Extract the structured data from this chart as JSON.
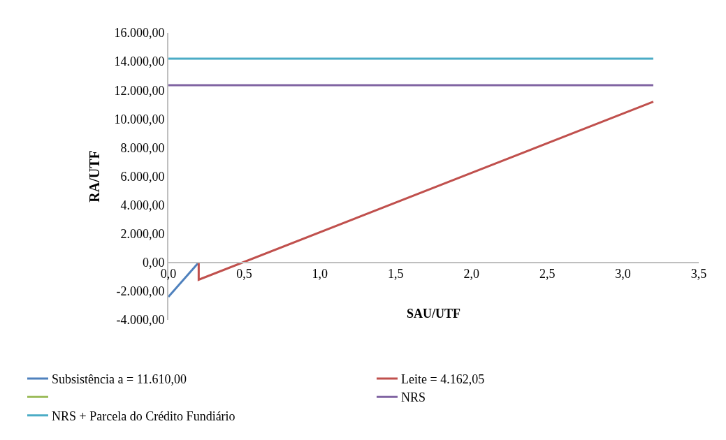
{
  "chart_data": {
    "type": "line",
    "xlabel": "SAU/UTF",
    "ylabel": "RA/UTF",
    "xlim": [
      0,
      3.5
    ],
    "xticks": [
      {
        "value": 0,
        "label": "0,0"
      },
      {
        "value": 0.5,
        "label": "0,5"
      },
      {
        "value": 1,
        "label": "1,0"
      },
      {
        "value": 1.5,
        "label": "1,5"
      },
      {
        "value": 2,
        "label": "2,0"
      },
      {
        "value": 2.5,
        "label": "2,5"
      },
      {
        "value": 3,
        "label": "3,0"
      },
      {
        "value": 3.5,
        "label": "3,5"
      }
    ],
    "ylim": [
      -4000,
      16000
    ],
    "yticks": [
      {
        "value": -4000,
        "label": "-4.000,00"
      },
      {
        "value": -2000,
        "label": "-2.000,00"
      },
      {
        "value": 0,
        "label": "0,00"
      },
      {
        "value": 2000,
        "label": "2.000,00"
      },
      {
        "value": 4000,
        "label": "4.000,00"
      },
      {
        "value": 6000,
        "label": "6.000,00"
      },
      {
        "value": 8000,
        "label": "8.000,00"
      },
      {
        "value": 10000,
        "label": "10.000,00"
      },
      {
        "value": 12000,
        "label": "12.000,00"
      },
      {
        "value": 14000,
        "label": "14.000,00"
      },
      {
        "value": 16000,
        "label": "16.000,00"
      }
    ],
    "grid": false,
    "legend": "bottom",
    "marker": "none",
    "line_style": "solid",
    "series": [
      {
        "name": "Subsistência a = 11.610,00",
        "color": "#4f81bd",
        "x": [
          0,
          0.2
        ],
        "values": [
          -2400,
          0
        ]
      },
      {
        "name": "Leite = 4.162,05",
        "color": "#c0504d",
        "x": [
          0.2,
          0.2,
          3.2
        ],
        "values": [
          0,
          -1200,
          11200
        ]
      },
      {
        "color": "#9bbb59"
      },
      {
        "name": "NRS",
        "color": "#8064a2",
        "x": [
          0,
          3.2
        ],
        "values": [
          12350,
          12350
        ]
      },
      {
        "name": "NRS + Parcela do Crédito Fundiário",
        "color": "#4bacc6",
        "x": [
          0,
          3.2
        ],
        "values": [
          14200,
          14200
        ]
      }
    ]
  }
}
